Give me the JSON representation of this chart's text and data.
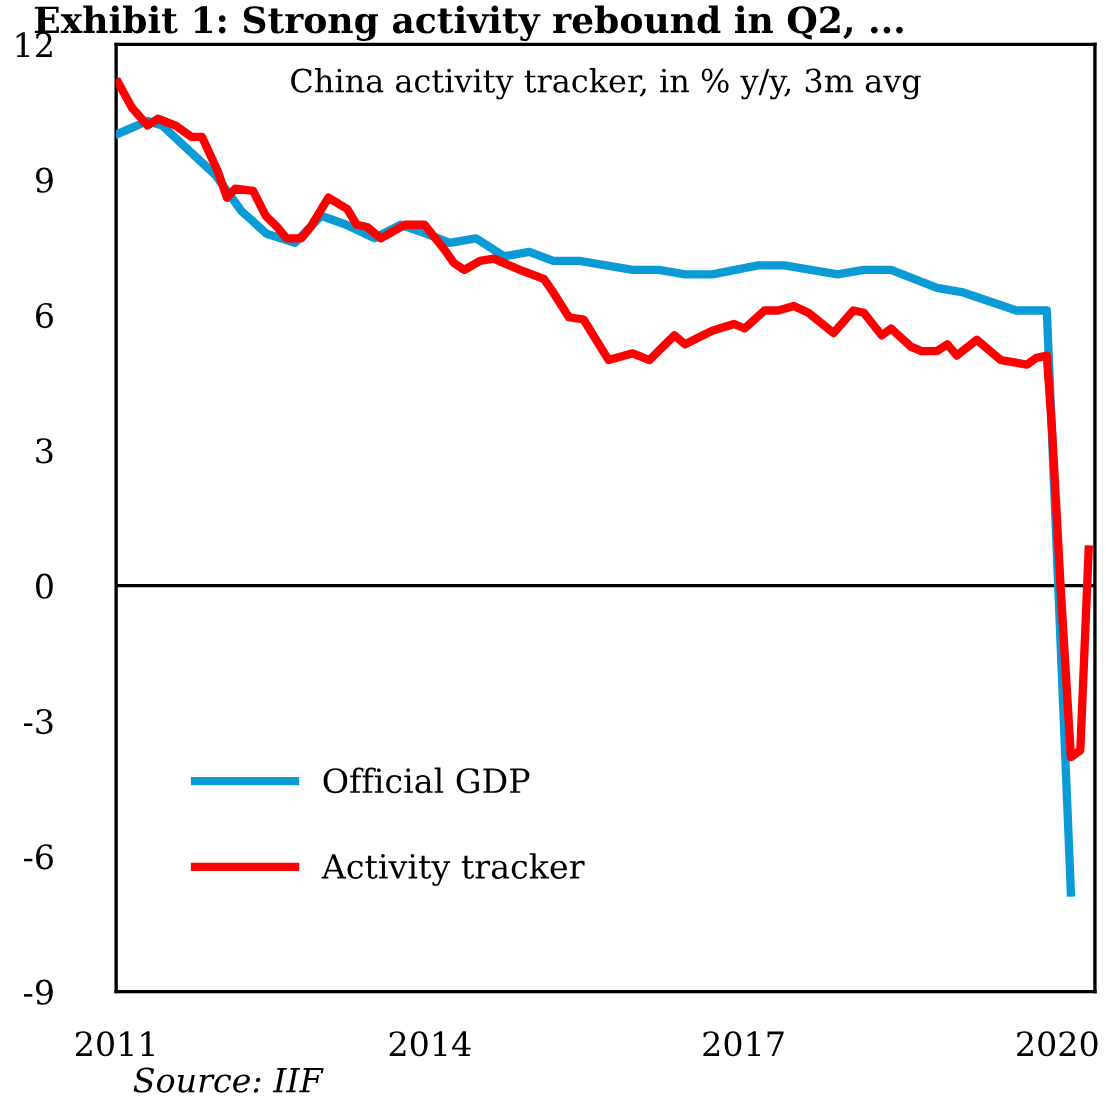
{
  "chart_data": {
    "type": "line",
    "title": "Exhibit 1: Strong activity rebound in Q2, ...",
    "subtitle": "China activity tracker, in % y/y, 3m avg",
    "annotations": [
      "Source: IIF"
    ],
    "xlim": [
      2011,
      2020.36
    ],
    "xticks": [
      2011,
      2014,
      2017,
      2020
    ],
    "ylim": [
      -9,
      12
    ],
    "yticks": [
      -9,
      -6,
      -3,
      0,
      3,
      6,
      9,
      12
    ],
    "ref_lines": [
      {
        "axis": "y",
        "value": 0,
        "color": "#000000"
      }
    ],
    "legend": "bottom left",
    "grid": false,
    "series": [
      {
        "name": "Official GDP",
        "color": "#0a9bd7",
        "x": [
          2011.0,
          2011.3,
          2011.44,
          2011.95,
          2012.2,
          2012.44,
          2012.71,
          2012.96,
          2013.2,
          2013.47,
          2013.72,
          2013.97,
          2014.19,
          2014.44,
          2014.71,
          2014.95,
          2015.18,
          2015.43,
          2015.94,
          2016.19,
          2016.44,
          2016.7,
          2017.14,
          2017.39,
          2017.9,
          2018.15,
          2018.41,
          2018.85,
          2019.1,
          2019.61,
          2019.9,
          2020.13
        ],
        "values": [
          10.0,
          10.3,
          10.2,
          9.1,
          8.3,
          7.8,
          7.6,
          8.2,
          8.0,
          7.7,
          8.0,
          7.8,
          7.6,
          7.7,
          7.3,
          7.4,
          7.2,
          7.2,
          7.0,
          7.0,
          6.9,
          6.9,
          7.1,
          7.1,
          6.9,
          7.0,
          7.0,
          6.6,
          6.5,
          6.1,
          6.1,
          -6.8
        ]
      },
      {
        "name": "Activity tracker",
        "color": "#ff0000",
        "x": [
          2011.02,
          2011.15,
          2011.3,
          2011.4,
          2011.57,
          2011.72,
          2011.82,
          2011.97,
          2012.06,
          2012.14,
          2012.31,
          2012.43,
          2012.54,
          2012.63,
          2012.77,
          2012.86,
          2013.03,
          2013.21,
          2013.3,
          2013.4,
          2013.53,
          2013.76,
          2013.95,
          2014.14,
          2014.23,
          2014.33,
          2014.48,
          2014.61,
          2014.86,
          2015.09,
          2015.18,
          2015.33,
          2015.47,
          2015.71,
          2015.94,
          2016.1,
          2016.23,
          2016.34,
          2016.44,
          2016.7,
          2016.91,
          2017.01,
          2017.2,
          2017.33,
          2017.48,
          2017.62,
          2017.86,
          2018.05,
          2018.15,
          2018.32,
          2018.41,
          2018.6,
          2018.7,
          2018.85,
          2018.95,
          2019.04,
          2019.23,
          2019.46,
          2019.71,
          2019.8,
          2019.9,
          2019.95,
          2020.03,
          2020.13,
          2020.22,
          2020.3
        ],
        "values": [
          11.15,
          10.6,
          10.2,
          10.35,
          10.2,
          9.95,
          9.95,
          9.2,
          8.6,
          8.8,
          8.75,
          8.2,
          7.95,
          7.7,
          7.7,
          7.95,
          8.6,
          8.35,
          8.0,
          7.95,
          7.7,
          8.0,
          8.0,
          7.45,
          7.15,
          7.0,
          7.2,
          7.25,
          7.0,
          6.8,
          6.5,
          5.95,
          5.9,
          5.0,
          5.15,
          5.0,
          5.3,
          5.55,
          5.35,
          5.65,
          5.8,
          5.7,
          6.1,
          6.1,
          6.2,
          6.05,
          5.6,
          6.1,
          6.05,
          5.55,
          5.7,
          5.3,
          5.2,
          5.2,
          5.35,
          5.1,
          5.45,
          5.0,
          4.9,
          5.05,
          5.1,
          3.45,
          0.05,
          -3.8,
          -3.65,
          0.8
        ]
      }
    ]
  }
}
